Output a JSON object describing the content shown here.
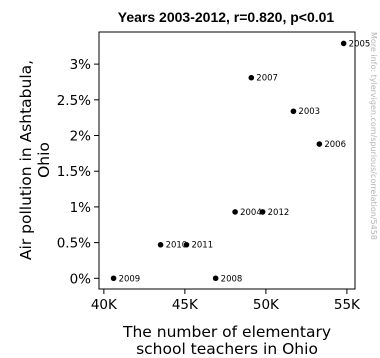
{
  "chart_data": {
    "type": "scatter",
    "title": "Years 2003-2012, r=0.820, p<0.01",
    "xlabel_lines": [
      "The number of elementary",
      "school teachers in Ohio"
    ],
    "ylabel_lines": [
      "Air pollution in Ashtabula,",
      "Ohio"
    ],
    "watermark": "More info: tylervigen.com/spurious/correlation/5458",
    "xlim": [
      39700,
      55500
    ],
    "ylim": [
      -0.0015,
      0.0345
    ],
    "x_ticks": [
      40000,
      45000,
      50000,
      55000
    ],
    "x_tick_labels": [
      "40K",
      "45K",
      "50K",
      "55K"
    ],
    "y_ticks": [
      0,
      0.005,
      0.01,
      0.015,
      0.02,
      0.025,
      0.03
    ],
    "y_tick_labels": [
      "0%",
      "0.5%",
      "1%",
      "1.5%",
      "2%",
      "2.5%",
      "3%"
    ],
    "grid": false,
    "points": [
      {
        "label": "2003",
        "x": 51700,
        "y": 0.0234
      },
      {
        "label": "2004",
        "x": 48100,
        "y": 0.0093
      },
      {
        "label": "2005",
        "x": 54800,
        "y": 0.0329
      },
      {
        "label": "2006",
        "x": 53300,
        "y": 0.0188
      },
      {
        "label": "2007",
        "x": 49100,
        "y": 0.0281
      },
      {
        "label": "2008",
        "x": 46900,
        "y": 0.0
      },
      {
        "label": "2009",
        "x": 40600,
        "y": 0.0
      },
      {
        "label": "2010",
        "x": 43500,
        "y": 0.0047
      },
      {
        "label": "2011",
        "x": 45100,
        "y": 0.0047
      },
      {
        "label": "2012",
        "x": 49800,
        "y": 0.0093
      }
    ]
  }
}
